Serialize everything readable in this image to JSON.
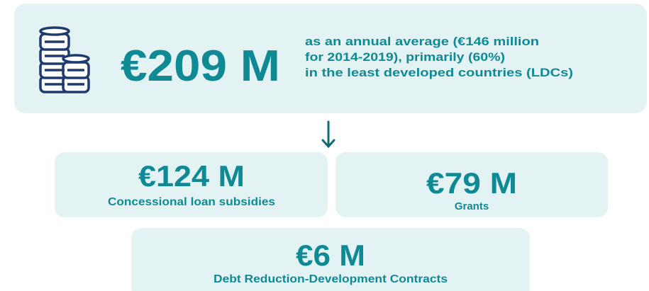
{
  "total": {
    "amount": "€209 M",
    "description": [
      "as an annual average (€146 million",
      "for 2014-2019), primarily (60%)",
      "in the least developed countries (LDCs)"
    ]
  },
  "breakdown": [
    {
      "amount": "€124 M",
      "label": "Concessional loan subsidies"
    },
    {
      "amount": "€79 M",
      "label": "Grants"
    },
    {
      "amount": "€6 M",
      "label": "Debt Reduction-Development Contracts"
    }
  ]
}
